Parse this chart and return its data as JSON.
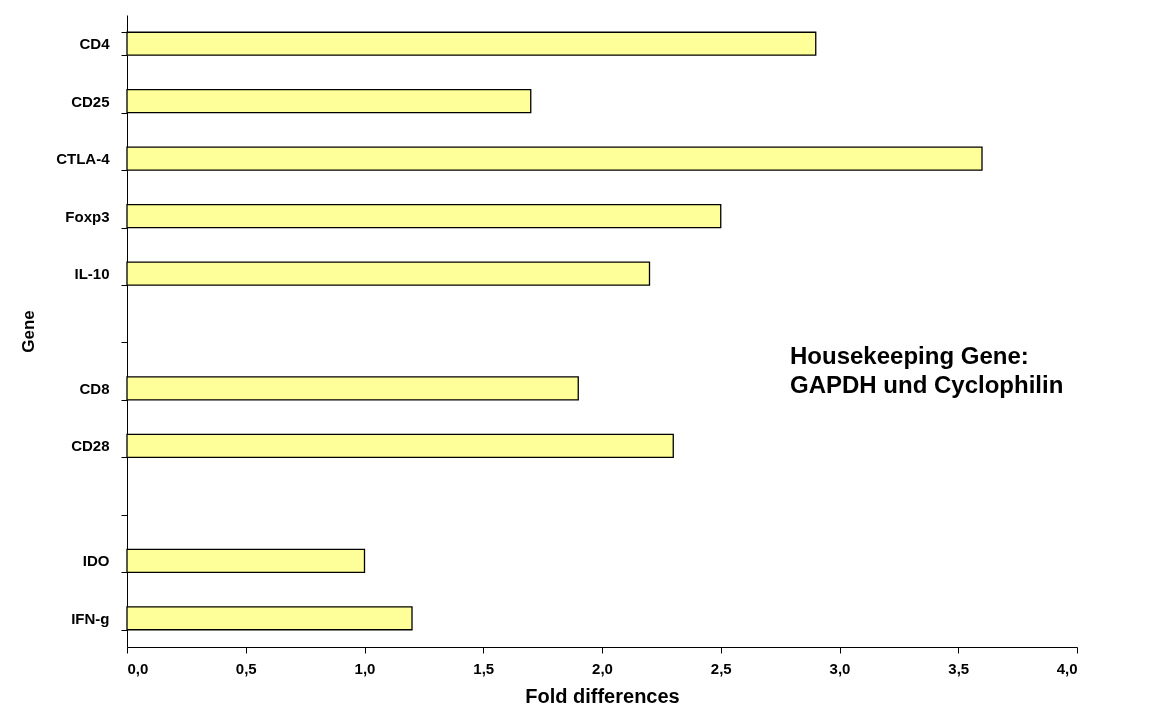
{
  "chart_data": {
    "type": "bar",
    "orientation": "horizontal",
    "xlabel": "Fold differences",
    "ylabel": "Gene",
    "categories": [
      "CD4",
      "CD25",
      "CTLA-4",
      "Foxp3",
      "IL-10",
      null,
      "CD8",
      "CD28",
      null,
      "IDO",
      "IFN-g"
    ],
    "values": [
      2.9,
      1.7,
      3.6,
      2.5,
      2.2,
      null,
      1.9,
      2.3,
      null,
      1.0,
      1.2
    ],
    "color": "#ffff99",
    "xlim": [
      0,
      4
    ],
    "xticks": [
      {
        "value": 0,
        "label": "0,0"
      },
      {
        "value": 0.5,
        "label": "0,5"
      },
      {
        "value": 1,
        "label": "1,0"
      },
      {
        "value": 1.5,
        "label": "1,5"
      },
      {
        "value": 2,
        "label": "2,0"
      },
      {
        "value": 2.5,
        "label": "2,5"
      },
      {
        "value": 3,
        "label": "3,0"
      },
      {
        "value": 3.5,
        "label": "3,5"
      },
      {
        "value": 4,
        "label": "4,0"
      }
    ],
    "grid": false,
    "annotations": [
      "Housekeeping Gene:",
      "GAPDH und Cyclophilin"
    ]
  }
}
